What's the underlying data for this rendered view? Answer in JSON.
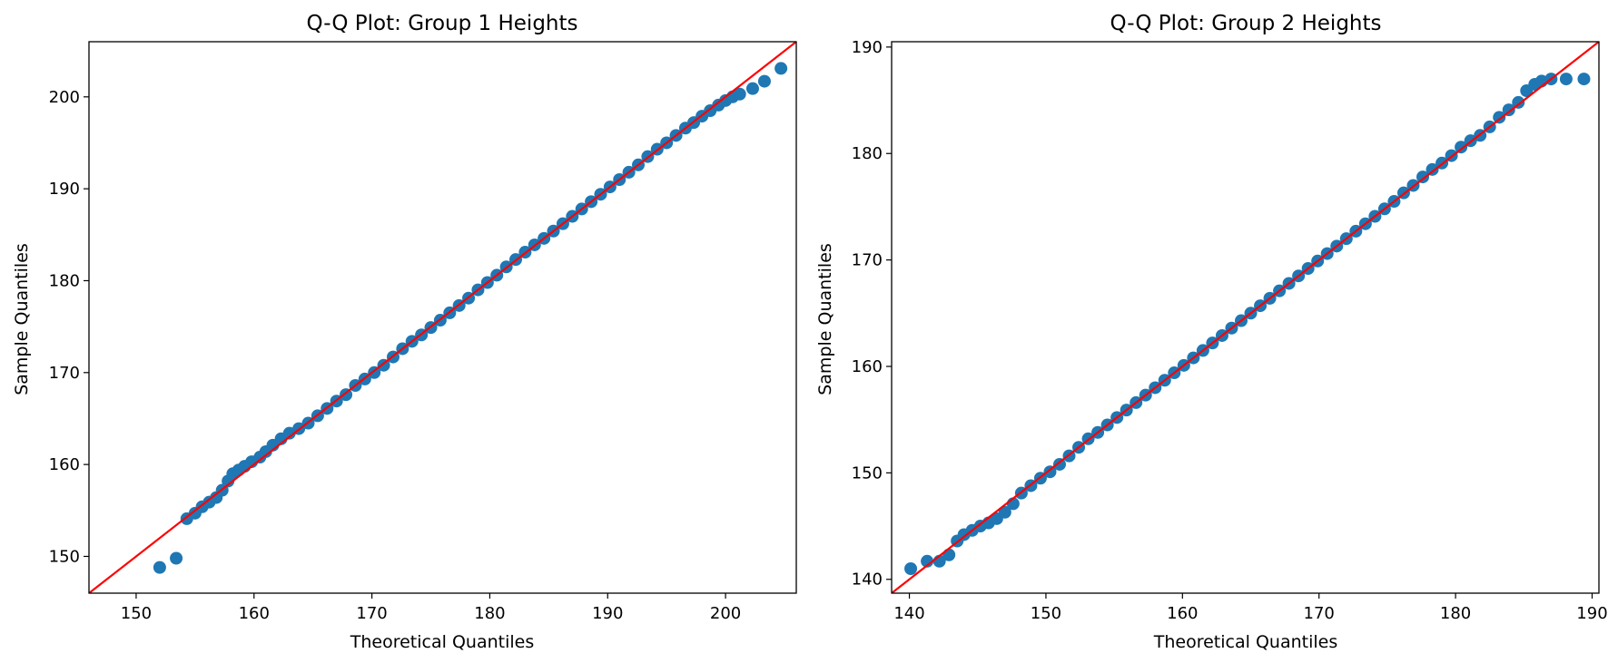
{
  "chart_data": [
    {
      "type": "scatter",
      "title": "Q-Q Plot: Group 1 Heights",
      "xlabel": "Theoretical Quantiles",
      "ylabel": "Sample Quantiles",
      "xlim": [
        146,
        206
      ],
      "ylim": [
        146,
        206
      ],
      "xticks": [
        150,
        160,
        170,
        180,
        190,
        200
      ],
      "yticks": [
        150,
        160,
        170,
        180,
        190,
        200
      ],
      "grid": false,
      "marker_color": "#1f77b4",
      "reference_line": {
        "from": [
          146,
          146
        ],
        "to": [
          206,
          206
        ],
        "color": "#ff0000"
      },
      "points": {
        "x": [
          152.0,
          153.4,
          154.3,
          155.0,
          155.6,
          156.2,
          156.8,
          157.3,
          157.8,
          158.2,
          158.7,
          159.2,
          159.8,
          160.5,
          161.0,
          161.6,
          162.3,
          163.0,
          163.8,
          164.6,
          165.4,
          166.2,
          167.0,
          167.8,
          168.6,
          169.4,
          170.2,
          171.0,
          171.8,
          172.6,
          173.4,
          174.2,
          175.0,
          175.8,
          176.6,
          177.4,
          178.2,
          179.0,
          179.8,
          180.6,
          181.4,
          182.2,
          183.0,
          183.8,
          184.6,
          185.4,
          186.2,
          187.0,
          187.8,
          188.6,
          189.4,
          190.2,
          191.0,
          191.8,
          192.6,
          193.4,
          194.2,
          195.0,
          195.8,
          196.6,
          197.3,
          198.0,
          198.7,
          199.4,
          200.0,
          200.6,
          201.2,
          202.3,
          203.3,
          204.7
        ],
        "y": [
          148.8,
          149.8,
          154.1,
          154.7,
          155.4,
          155.9,
          156.4,
          157.2,
          158.2,
          159.0,
          159.4,
          159.8,
          160.3,
          160.8,
          161.4,
          162.1,
          162.8,
          163.4,
          163.9,
          164.5,
          165.3,
          166.1,
          166.9,
          167.6,
          168.6,
          169.3,
          170.0,
          170.8,
          171.7,
          172.6,
          173.4,
          174.1,
          174.9,
          175.7,
          176.5,
          177.3,
          178.1,
          179.0,
          179.8,
          180.6,
          181.5,
          182.3,
          183.1,
          183.9,
          184.6,
          185.4,
          186.2,
          187.0,
          187.8,
          188.6,
          189.4,
          190.2,
          191.0,
          191.8,
          192.6,
          193.5,
          194.3,
          195.0,
          195.8,
          196.6,
          197.2,
          197.9,
          198.5,
          199.1,
          199.6,
          200.0,
          200.3,
          200.9,
          201.7,
          203.1
        ]
      }
    },
    {
      "type": "scatter",
      "title": "Q-Q Plot: Group 2 Heights",
      "xlabel": "Theoretical Quantiles",
      "ylabel": "Sample Quantiles",
      "xlim": [
        138.7,
        190.5
      ],
      "ylim": [
        138.7,
        190.5
      ],
      "xticks": [
        140,
        150,
        160,
        170,
        180,
        190
      ],
      "yticks": [
        140,
        150,
        160,
        170,
        180,
        190
      ],
      "grid": false,
      "marker_color": "#1f77b4",
      "reference_line": {
        "from": [
          138.7,
          138.7
        ],
        "to": [
          190.5,
          190.5
        ],
        "color": "#ff0000"
      },
      "points": {
        "x": [
          140.1,
          141.3,
          142.2,
          142.9,
          143.5,
          144.0,
          144.6,
          145.2,
          145.8,
          146.4,
          147.0,
          147.6,
          148.2,
          148.9,
          149.6,
          150.3,
          151.0,
          151.7,
          152.4,
          153.1,
          153.8,
          154.5,
          155.2,
          155.9,
          156.6,
          157.3,
          158.0,
          158.7,
          159.4,
          160.1,
          160.8,
          161.5,
          162.2,
          162.9,
          163.6,
          164.3,
          165.0,
          165.7,
          166.4,
          167.1,
          167.8,
          168.5,
          169.2,
          169.9,
          170.6,
          171.3,
          172.0,
          172.7,
          173.4,
          174.1,
          174.8,
          175.5,
          176.2,
          176.9,
          177.6,
          178.3,
          179.0,
          179.7,
          180.4,
          181.1,
          181.8,
          182.5,
          183.2,
          183.9,
          184.6,
          185.2,
          185.8,
          186.3,
          187.0,
          188.1,
          189.4
        ],
        "y": [
          141.0,
          141.7,
          141.7,
          142.3,
          143.6,
          144.2,
          144.6,
          145.0,
          145.3,
          145.7,
          146.3,
          147.1,
          148.1,
          148.8,
          149.5,
          150.1,
          150.8,
          151.6,
          152.4,
          153.2,
          153.8,
          154.5,
          155.2,
          155.9,
          156.6,
          157.3,
          158.0,
          158.7,
          159.4,
          160.1,
          160.8,
          161.5,
          162.2,
          162.9,
          163.6,
          164.3,
          165.0,
          165.7,
          166.4,
          167.1,
          167.8,
          168.5,
          169.2,
          169.9,
          170.6,
          171.3,
          172.0,
          172.7,
          173.4,
          174.1,
          174.8,
          175.5,
          176.3,
          177.0,
          177.8,
          178.5,
          179.1,
          179.8,
          180.6,
          181.2,
          181.7,
          182.5,
          183.4,
          184.1,
          184.8,
          185.9,
          186.5,
          186.8,
          187.0,
          187.0,
          187.0
        ]
      }
    }
  ]
}
